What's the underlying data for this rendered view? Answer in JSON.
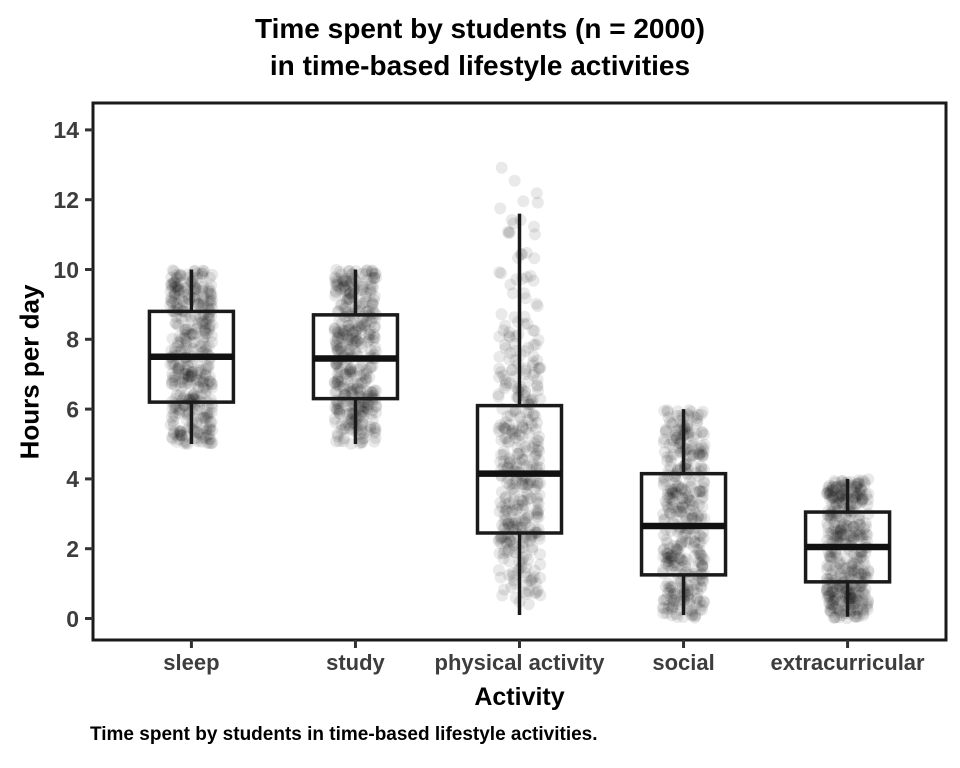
{
  "chart_data": {
    "type": "boxplot",
    "title_lines": [
      "Time spent by students (n = 2000)",
      "in time-based lifestyle activities"
    ],
    "title": "Time spent by students (n = 2000) in time-based lifestyle activities",
    "xlabel": "Activity",
    "ylabel": "Hours per day",
    "caption": "Time spent by students in time-based lifestyle activities.",
    "n": 2000,
    "ylim": [
      0,
      14
    ],
    "yticks": [
      0,
      2,
      4,
      6,
      8,
      10,
      12,
      14
    ],
    "grid": false,
    "legend": "none",
    "overlay": "jittered points, black, low alpha",
    "categories": [
      "sleep",
      "study",
      "physical activity",
      "social",
      "extracurricular"
    ],
    "series": [
      {
        "label": "sleep",
        "whisker_low": 5.0,
        "q1": 6.2,
        "median": 7.5,
        "q3": 8.8,
        "whisker_high": 10.0,
        "points_min": 5.0,
        "points_max": 10.0,
        "distribution": "uniform",
        "n_points": 400
      },
      {
        "label": "study",
        "whisker_low": 5.0,
        "q1": 6.3,
        "median": 7.45,
        "q3": 8.7,
        "whisker_high": 10.0,
        "points_min": 5.0,
        "points_max": 10.0,
        "distribution": "uniform",
        "n_points": 400
      },
      {
        "label": "physical activity",
        "whisker_low": 0.1,
        "q1": 2.45,
        "median": 4.15,
        "q3": 6.1,
        "whisker_high": 11.6,
        "points_min": 0.0,
        "points_max": 13.05,
        "distribution": "gamma",
        "n_points": 400
      },
      {
        "label": "social",
        "whisker_low": 0.1,
        "q1": 1.25,
        "median": 2.65,
        "q3": 4.15,
        "whisker_high": 6.0,
        "points_min": 0.0,
        "points_max": 6.0,
        "distribution": "uniform",
        "n_points": 400
      },
      {
        "label": "extracurricular",
        "whisker_low": 0.05,
        "q1": 1.05,
        "median": 2.05,
        "q3": 3.05,
        "whisker_high": 4.0,
        "points_min": 0.0,
        "points_max": 4.0,
        "distribution": "uniform",
        "n_points": 400
      }
    ],
    "colors": {
      "background": "#ffffff",
      "panel_border": "#1a1a1a",
      "box_stroke": "#1a1a1a",
      "median": "#111111",
      "point": "#000000",
      "point_opacity": 0.085,
      "axis_tick": "#333333",
      "axis_text": "#3d3d3d",
      "title_text": "#000000"
    }
  }
}
